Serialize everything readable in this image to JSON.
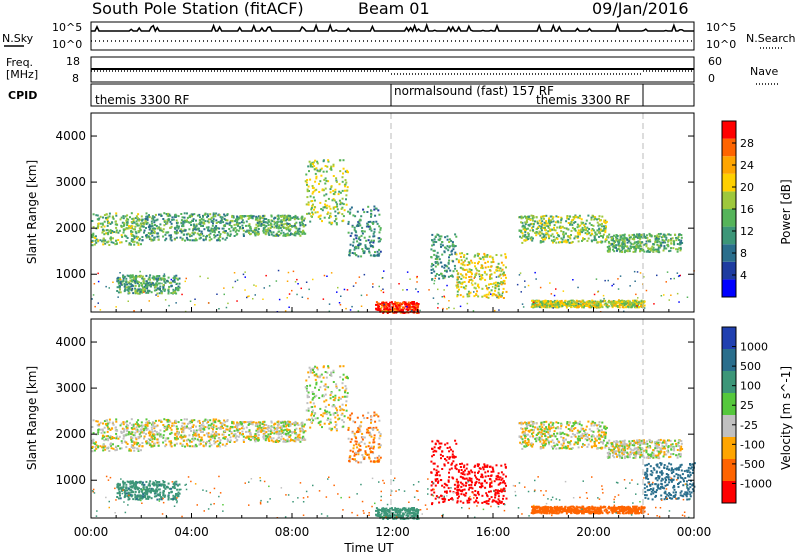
{
  "header": {
    "station": "South Pole Station (fitACF)",
    "beam": "Beam 01",
    "date": "09/Jan/2016"
  },
  "nsky_panel": {
    "left_label": "N.Sky",
    "right_label": "N.Search",
    "left_ticks": [
      "10^5",
      "10^0"
    ],
    "right_ticks": [
      "10^5",
      "10^0"
    ]
  },
  "freq_panel": {
    "left_label_top": "Freq.",
    "left_label_bottom": "[MHz]",
    "left_ticks": [
      "18",
      "8"
    ],
    "right_label": "Nave",
    "right_ticks": [
      "60",
      "0"
    ]
  },
  "cpid_panel": {
    "label": "CPID",
    "segments": [
      "themis 3300 RF",
      "normalsound (fast) 157 RF",
      "themis 3300 RF"
    ]
  },
  "x_axis": {
    "label": "Time UT",
    "ticks": [
      "00:00",
      "04:00",
      "08:00",
      "12:00",
      "16:00",
      "20:00",
      "00:00"
    ]
  },
  "power_panel": {
    "ylabel": "Slant Range [km]",
    "y_ticks": [
      "1000",
      "2000",
      "3000",
      "4000"
    ],
    "colorbar_label": "Power [dB]",
    "colorbar_ticks": [
      "4",
      "8",
      "12",
      "16",
      "20",
      "24",
      "28"
    ],
    "colors": [
      "#0000ff",
      "#1e3ca0",
      "#2a6e8c",
      "#3c9678",
      "#55b45a",
      "#9ec83c",
      "#ffd000",
      "#ffa500",
      "#ff6400",
      "#ff0000"
    ]
  },
  "velocity_panel": {
    "ylabel": "Slant Range [km]",
    "y_ticks": [
      "1000",
      "2000",
      "3000",
      "4000"
    ],
    "colorbar_label": "Velocity [m s^-1]",
    "colorbar_ticks": [
      "1000",
      "500",
      "100",
      "25",
      "-25",
      "-100",
      "-500",
      "-1000"
    ],
    "colors": [
      "#2040b0",
      "#2a6e8c",
      "#3c9678",
      "#55c83c",
      "#c0c0c0",
      "#ffa500",
      "#ff6400",
      "#ff0000"
    ]
  },
  "chart_data": [
    {
      "type": "heatmap",
      "title": "Power [dB]",
      "xlabel": "Time UT",
      "ylabel": "Slant Range [km]",
      "xlim_hours": [
        0,
        24
      ],
      "ylim_km": [
        180,
        4500
      ],
      "zlim": [
        0,
        30
      ],
      "bands": [
        {
          "t": [
            0.0,
            2.0
          ],
          "r": [
            1650,
            2350
          ],
          "z": 14
        },
        {
          "t": [
            2.0,
            5.5
          ],
          "r": [
            1750,
            2350
          ],
          "z": 12
        },
        {
          "t": [
            5.5,
            8.5
          ],
          "r": [
            1850,
            2300
          ],
          "z": 13
        },
        {
          "t": [
            8.5,
            10.2
          ],
          "r": [
            2100,
            3500
          ],
          "z": 16
        },
        {
          "t": [
            10.2,
            11.5
          ],
          "r": [
            1400,
            2500
          ],
          "z": 10
        },
        {
          "t": [
            13.5,
            14.5
          ],
          "r": [
            900,
            1900
          ],
          "z": 11
        },
        {
          "t": [
            14.5,
            16.5
          ],
          "r": [
            500,
            1500
          ],
          "z": 18
        },
        {
          "t": [
            17.0,
            20.5
          ],
          "r": [
            1700,
            2300
          ],
          "z": 15
        },
        {
          "t": [
            20.5,
            23.5
          ],
          "r": [
            1500,
            1900
          ],
          "z": 13
        },
        {
          "t": [
            11.3,
            13.0
          ],
          "r": [
            180,
            420
          ],
          "z": 28
        },
        {
          "t": [
            17.5,
            22.0
          ],
          "r": [
            300,
            450
          ],
          "z": 17
        },
        {
          "t": [
            1.0,
            3.5
          ],
          "r": [
            600,
            1000
          ],
          "z": 12
        }
      ]
    },
    {
      "type": "heatmap",
      "title": "Velocity [m s^-1]",
      "xlabel": "Time UT",
      "ylabel": "Slant Range [km]",
      "xlim_hours": [
        0,
        24
      ],
      "ylim_km": [
        180,
        4500
      ],
      "zlim": [
        -1000,
        1000
      ],
      "bands": [
        {
          "t": [
            0.0,
            2.0
          ],
          "r": [
            1650,
            2350
          ],
          "z": 0
        },
        {
          "t": [
            2.0,
            5.5
          ],
          "r": [
            1750,
            2350
          ],
          "z": 0
        },
        {
          "t": [
            5.5,
            8.5
          ],
          "r": [
            1850,
            2300
          ],
          "z": 0
        },
        {
          "t": [
            8.5,
            10.2
          ],
          "r": [
            2100,
            3500
          ],
          "z": 0
        },
        {
          "t": [
            10.2,
            11.5
          ],
          "r": [
            1400,
            2500
          ],
          "z": -60
        },
        {
          "t": [
            13.5,
            14.5
          ],
          "r": [
            500,
            1900
          ],
          "z": -700
        },
        {
          "t": [
            14.5,
            16.5
          ],
          "r": [
            500,
            1400
          ],
          "z": -600
        },
        {
          "t": [
            17.0,
            20.5
          ],
          "r": [
            1700,
            2300
          ],
          "z": 0
        },
        {
          "t": [
            20.5,
            23.5
          ],
          "r": [
            1500,
            1900
          ],
          "z": 0
        },
        {
          "t": [
            11.3,
            13.0
          ],
          "r": [
            180,
            420
          ],
          "z": 200
        },
        {
          "t": [
            17.5,
            22.0
          ],
          "r": [
            300,
            450
          ],
          "z": -150
        },
        {
          "t": [
            1.0,
            3.5
          ],
          "r": [
            600,
            1000
          ],
          "z": 250
        },
        {
          "t": [
            22.0,
            24.0
          ],
          "r": [
            600,
            1400
          ],
          "z": 400
        }
      ]
    }
  ]
}
